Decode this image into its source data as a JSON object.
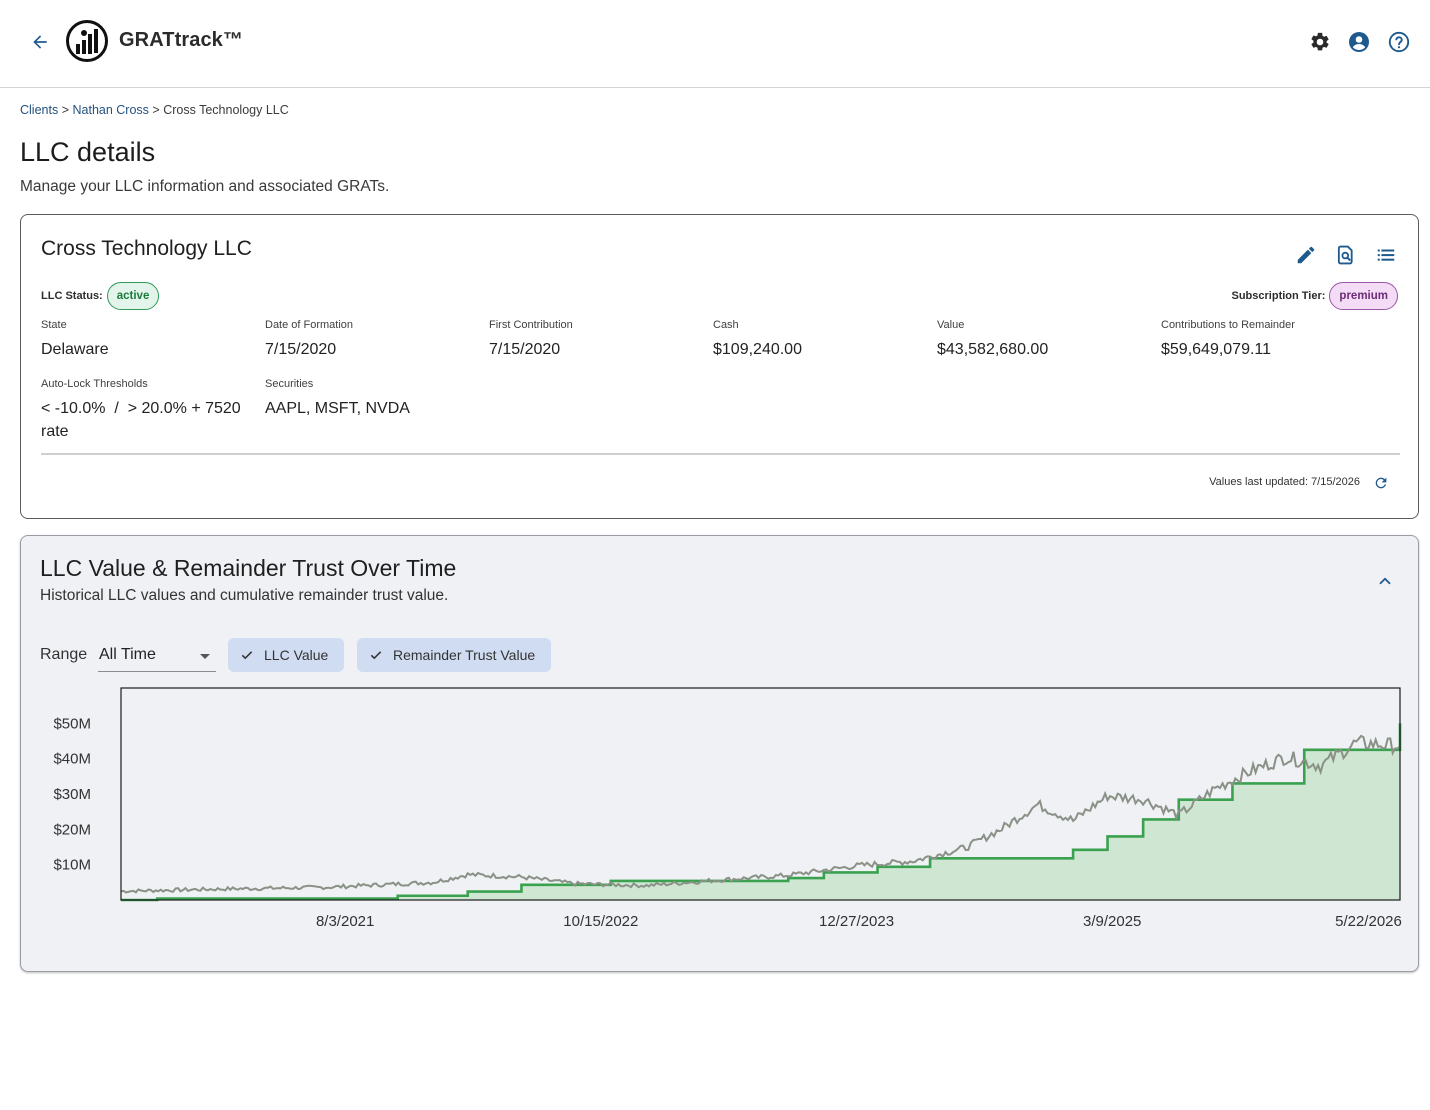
{
  "app": {
    "title": "GRATtrack™"
  },
  "breadcrumb": {
    "clients": "Clients",
    "client": "Nathan Cross",
    "current": "Cross Technology LLC",
    "sep": ">"
  },
  "page": {
    "title": "LLC details",
    "subtitle": "Manage your LLC information and associated GRATs."
  },
  "llc": {
    "name": "Cross Technology LLC",
    "status_label": "LLC Status:",
    "status": "active",
    "tier_label": "Subscription Tier:",
    "tier": "premium",
    "fields": [
      {
        "label": "State",
        "value": "Delaware"
      },
      {
        "label": "Date of Formation",
        "value": "7/15/2020"
      },
      {
        "label": "First Contribution",
        "value": "7/15/2020"
      },
      {
        "label": "Cash",
        "value": "$109,240.00"
      },
      {
        "label": "Value",
        "value": "$43,582,680.00"
      },
      {
        "label": "Contributions to Remainder",
        "value": "$59,649,079.11"
      },
      {
        "label": "Auto-Lock Thresholds",
        "value": "< -10.0%  /  > 20.0% + 7520 rate"
      },
      {
        "label": "Securities",
        "value": "AAPL, MSFT, NVDA"
      }
    ],
    "updated": "Values last updated: 7/15/2026"
  },
  "chart_section": {
    "title": "LLC Value & Remainder Trust Over Time",
    "subtitle": "Historical LLC values and cumulative remainder trust value.",
    "range_label": "Range",
    "range_value": "All Time",
    "toggles": [
      "LLC Value",
      "Remainder Trust Value"
    ]
  },
  "colors": {
    "remainder": "#3aa14f",
    "remainder_fill": "#cfe6d3",
    "llc": "#8a9186",
    "accent": "#1f5a8f"
  },
  "icons": [
    "arrow-left-icon",
    "grattrack-logo",
    "gear-icon",
    "account-circle-icon",
    "help-circle-icon",
    "pencil-icon",
    "document-search-icon",
    "list-icon",
    "refresh-icon",
    "chevron-up-icon",
    "check-icon"
  ],
  "chart_data": {
    "type": "line",
    "x_ticks": [
      "8/3/2021",
      "10/15/2022",
      "12/27/2023",
      "3/9/2025",
      "5/22/2026"
    ],
    "y_ticks": [
      "$10M",
      "$20M",
      "$30M",
      "$40M",
      "$50M"
    ],
    "ylim": [
      0,
      60
    ],
    "xlim": [
      "7/15/2020",
      "7/15/2026"
    ],
    "grid": false,
    "series": [
      {
        "name": "Remainder Trust Value",
        "step": true,
        "points": [
          [
            "7/15/2020",
            0
          ],
          [
            "9/15/2020",
            0.4
          ],
          [
            "11/1/2021",
            1.2
          ],
          [
            "3/1/2022",
            2.4
          ],
          [
            "6/1/2022",
            4.3
          ],
          [
            "11/1/2022",
            5.4
          ],
          [
            "9/1/2023",
            6.2
          ],
          [
            "11/1/2023",
            7.8
          ],
          [
            "2/1/2024",
            9.4
          ],
          [
            "5/1/2024",
            11.8
          ],
          [
            "1/1/2025",
            14.2
          ],
          [
            "3/1/2025",
            18.0
          ],
          [
            "5/1/2025",
            22.8
          ],
          [
            "7/1/2025",
            28.4
          ],
          [
            "10/1/2025",
            33.0
          ],
          [
            "2/1/2026",
            42.5
          ],
          [
            "7/15/2026",
            50.0
          ]
        ]
      },
      {
        "name": "LLC Value",
        "points": [
          [
            "7/15/2020",
            2.5
          ],
          [
            "1/1/2021",
            3.1
          ],
          [
            "7/1/2021",
            3.6
          ],
          [
            "1/1/2022",
            5.0
          ],
          [
            "3/1/2022",
            7.2
          ],
          [
            "6/1/2022",
            6.5
          ],
          [
            "9/1/2022",
            4.6
          ],
          [
            "1/1/2023",
            4.1
          ],
          [
            "5/1/2023",
            5.6
          ],
          [
            "9/1/2023",
            7.0
          ],
          [
            "1/1/2024",
            9.8
          ],
          [
            "4/1/2024",
            11.0
          ],
          [
            "7/1/2024",
            14.8
          ],
          [
            "9/1/2024",
            20.2
          ],
          [
            "11/1/2024",
            27.0
          ],
          [
            "1/1/2025",
            22.5
          ],
          [
            "3/1/2025",
            29.5
          ],
          [
            "5/1/2025",
            28.5
          ],
          [
            "7/1/2025",
            24.0
          ],
          [
            "9/1/2025",
            31.5
          ],
          [
            "11/1/2025",
            36.5
          ],
          [
            "1/1/2026",
            40.5
          ],
          [
            "3/1/2026",
            38.0
          ],
          [
            "5/1/2026",
            44.5
          ],
          [
            "7/15/2026",
            43.6
          ]
        ]
      }
    ]
  }
}
